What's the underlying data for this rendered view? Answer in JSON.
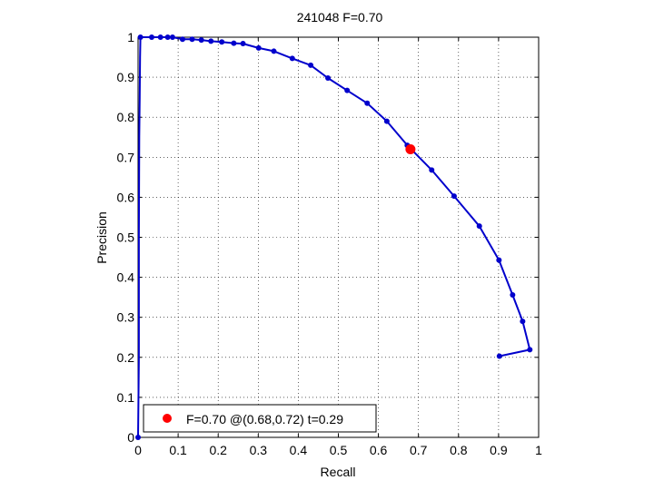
{
  "chart_data": {
    "type": "line",
    "title": "241048 F=0.70",
    "xlabel": "Recall",
    "ylabel": "Precision",
    "xlim": [
      0,
      1
    ],
    "ylim": [
      0,
      1
    ],
    "xticks": [
      "0",
      "0.1",
      "0.2",
      "0.3",
      "0.4",
      "0.5",
      "0.6",
      "0.7",
      "0.8",
      "0.9",
      "1"
    ],
    "yticks": [
      "0",
      "0.1",
      "0.2",
      "0.3",
      "0.4",
      "0.5",
      "0.6",
      "0.7",
      "0.8",
      "0.9",
      "1"
    ],
    "grid": true,
    "legend_position": "bottom-left",
    "series": [
      {
        "color": "#0000cc",
        "x": [
          0.0,
          0.002,
          0.002,
          0.003,
          0.004,
          0.005,
          0.006,
          0.034,
          0.056,
          0.074,
          0.086,
          0.111,
          0.135,
          0.158,
          0.182,
          0.209,
          0.239,
          0.262,
          0.301,
          0.339,
          0.385,
          0.431,
          0.474,
          0.522,
          0.572,
          0.621,
          0.672,
          0.733,
          0.789,
          0.852,
          0.901,
          0.935,
          0.96,
          0.978,
          0.902
        ],
        "y": [
          0.0,
          0.2,
          0.5,
          0.75,
          0.85,
          0.95,
          1.0,
          1.0,
          1.0,
          1.0,
          1.0,
          0.995,
          0.995,
          0.993,
          0.99,
          0.988,
          0.985,
          0.984,
          0.973,
          0.965,
          0.947,
          0.93,
          0.898,
          0.867,
          0.835,
          0.79,
          0.73,
          0.668,
          0.603,
          0.528,
          0.443,
          0.356,
          0.29,
          0.219,
          0.203
        ],
        "markers": [
          0.0,
          0.006,
          0.034,
          0.056,
          0.074,
          0.086,
          0.111,
          0.135,
          0.158,
          0.182,
          0.209,
          0.239,
          0.262,
          0.301,
          0.339,
          0.385,
          0.431,
          0.474,
          0.522,
          0.572,
          0.621,
          0.672,
          0.733,
          0.789,
          0.852,
          0.901,
          0.935,
          0.96,
          0.978,
          0.902
        ]
      }
    ],
    "highlight": {
      "x": 0.68,
      "y": 0.72,
      "color": "#ff0000"
    },
    "legend_label": "F=0.70 @(0.68,0.72) t=0.29"
  }
}
